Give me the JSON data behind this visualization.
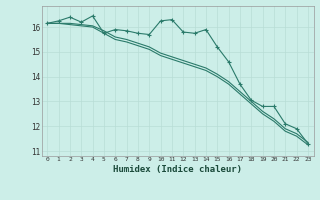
{
  "xlabel": "Humidex (Indice chaleur)",
  "bg_color": "#cceee8",
  "grid_color": "#b8ddd6",
  "line_color": "#2a7a6a",
  "xlim": [
    -0.5,
    23.5
  ],
  "ylim": [
    10.8,
    16.85
  ],
  "xticks": [
    0,
    1,
    2,
    3,
    4,
    5,
    6,
    7,
    8,
    9,
    10,
    11,
    12,
    13,
    14,
    15,
    16,
    17,
    18,
    19,
    20,
    21,
    22,
    23
  ],
  "yticks": [
    11,
    12,
    13,
    14,
    15,
    16
  ],
  "line1": [
    16.15,
    16.25,
    16.4,
    16.2,
    16.45,
    15.75,
    15.9,
    15.85,
    15.75,
    15.7,
    16.25,
    16.3,
    15.8,
    15.75,
    15.9,
    15.2,
    14.6,
    13.7,
    13.05,
    12.8,
    12.8,
    12.1,
    11.9,
    11.3
  ],
  "line2": [
    16.15,
    16.15,
    16.15,
    16.1,
    16.05,
    15.85,
    15.6,
    15.5,
    15.35,
    15.2,
    14.95,
    14.8,
    14.65,
    14.5,
    14.35,
    14.1,
    13.8,
    13.4,
    13.0,
    12.6,
    12.3,
    11.9,
    11.7,
    11.35
  ],
  "line3": [
    16.15,
    16.15,
    16.1,
    16.05,
    16.0,
    15.75,
    15.5,
    15.4,
    15.25,
    15.1,
    14.85,
    14.7,
    14.55,
    14.4,
    14.25,
    14.0,
    13.7,
    13.3,
    12.9,
    12.5,
    12.2,
    11.8,
    11.6,
    11.25
  ]
}
